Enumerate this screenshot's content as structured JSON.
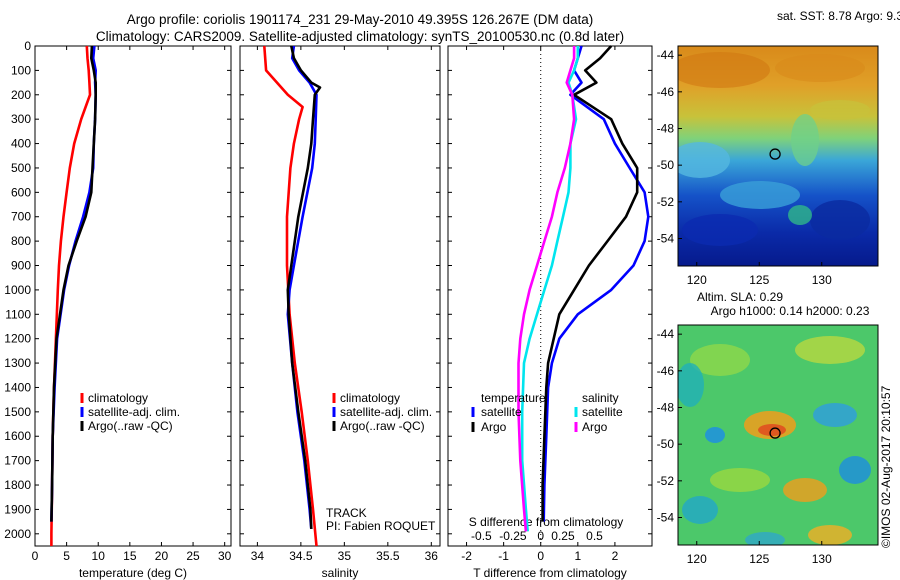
{
  "header": {
    "title_line1": "Argo profile: coriolis 1901174_231 29-May-2010 49.395S 126.267E (DM data)",
    "title_line2": "Climatology: CARS2009. Satellite-adjusted climatology: synTS_20100530.nc (0.8d later)"
  },
  "colors": {
    "climatology": "#ff0000",
    "satellite": "#0000ff",
    "argo": "#000000",
    "salinity_satellite": "#00e5ee",
    "salinity_argo": "#ff00ff"
  },
  "chart_data": [
    {
      "type": "line",
      "id": "temperature",
      "xlabel": "temperature (deg C)",
      "xlim": [
        0,
        31
      ],
      "xticks": [
        0,
        5,
        10,
        15,
        20,
        25,
        30
      ],
      "ylim": [
        2050,
        0
      ],
      "yticks": [
        0,
        100,
        200,
        300,
        400,
        500,
        600,
        700,
        800,
        900,
        1000,
        1100,
        1200,
        1300,
        1400,
        1500,
        1600,
        1700,
        1800,
        1900,
        2000
      ],
      "legend": [
        "climatology",
        "satellite-adj. clim.",
        "Argo(..raw -QC)"
      ],
      "series": [
        {
          "name": "climatology",
          "color": "#ff0000",
          "y": [
            0,
            50,
            100,
            150,
            200,
            250,
            300,
            400,
            500,
            600,
            700,
            800,
            900,
            1000,
            1200,
            1400,
            1600,
            1800,
            2000,
            2050
          ],
          "x": [
            8.2,
            8.3,
            8.5,
            8.6,
            8.7,
            8.0,
            7.3,
            6.2,
            5.5,
            5.0,
            4.5,
            4.1,
            3.8,
            3.6,
            3.3,
            3.0,
            2.8,
            2.7,
            2.6,
            2.6
          ]
        },
        {
          "name": "satellite-adj. clim.",
          "color": "#0000ff",
          "y": [
            0,
            50,
            100,
            150,
            200,
            300,
            400,
            500,
            600,
            700,
            800,
            900,
            1000,
            1200,
            1400,
            1600,
            1800,
            1950
          ],
          "x": [
            9.4,
            9.2,
            9.6,
            9.5,
            9.6,
            9.5,
            9.3,
            9.2,
            8.6,
            7.6,
            6.4,
            5.4,
            4.6,
            3.5,
            3.1,
            2.8,
            2.7,
            2.6
          ]
        },
        {
          "name": "Argo(..raw -QC)",
          "color": "#000000",
          "y": [
            0,
            50,
            100,
            150,
            200,
            300,
            400,
            500,
            600,
            700,
            800,
            900,
            1000,
            1200,
            1400,
            1600,
            1800,
            1950
          ],
          "x": [
            9.0,
            8.9,
            9.3,
            9.6,
            9.6,
            9.5,
            9.3,
            9.1,
            8.9,
            8.0,
            6.6,
            5.3,
            4.5,
            3.4,
            3.0,
            2.8,
            2.7,
            2.6
          ]
        }
      ]
    },
    {
      "type": "line",
      "id": "salinity",
      "xlabel": "salinity",
      "xlim": [
        33.8,
        36.1
      ],
      "xticks": [
        34,
        34.5,
        35,
        35.5,
        36
      ],
      "ylim": [
        2050,
        0
      ],
      "legend": [
        "climatology",
        "satellite-adj. clim.",
        "Argo(..raw -QC)"
      ],
      "annotations": [
        "TRACK",
        "PI: Fabien ROQUET"
      ],
      "series": [
        {
          "name": "climatology",
          "color": "#ff0000",
          "y": [
            0,
            100,
            200,
            250,
            300,
            400,
            500,
            700,
            900,
            1100,
            1300,
            1500,
            1700,
            1900,
            2050
          ],
          "x": [
            34.08,
            34.1,
            34.35,
            34.52,
            34.48,
            34.42,
            34.38,
            34.34,
            34.34,
            34.37,
            34.43,
            34.51,
            34.58,
            34.64,
            34.68
          ]
        },
        {
          "name": "satellite-adj. clim.",
          "color": "#0000ff",
          "y": [
            0,
            50,
            100,
            150,
            200,
            300,
            400,
            500,
            700,
            900,
            1000,
            1100,
            1300,
            1500,
            1700,
            1900,
            1980
          ],
          "x": [
            34.42,
            34.4,
            34.48,
            34.6,
            34.68,
            34.67,
            34.66,
            34.63,
            34.52,
            34.42,
            34.37,
            34.35,
            34.4,
            34.46,
            34.54,
            34.6,
            34.62
          ]
        },
        {
          "name": "Argo(..raw -QC)",
          "color": "#000000",
          "y": [
            0,
            50,
            100,
            150,
            170,
            200,
            300,
            400,
            500,
            700,
            900,
            1000,
            1100,
            1300,
            1500,
            1700,
            1900,
            1980
          ],
          "x": [
            34.39,
            34.42,
            34.5,
            34.62,
            34.72,
            34.66,
            34.64,
            34.62,
            34.58,
            34.47,
            34.39,
            34.35,
            34.36,
            34.4,
            34.47,
            34.55,
            34.61,
            34.62
          ]
        }
      ]
    },
    {
      "type": "line",
      "id": "difference",
      "xlabel": "T difference from climatology",
      "xlim": [
        -2.5,
        3.0
      ],
      "xticks": [
        -2,
        -1,
        0,
        1,
        2
      ],
      "top_axis_label": "S difference from climatology",
      "top_ticks": [
        {
          "label": "-0.5",
          "t_pos": -1.6
        },
        {
          "label": "-0.25",
          "t_pos": -0.75
        },
        {
          "label": "0",
          "t_pos": 0.0
        },
        {
          "label": "0.25",
          "t_pos": 0.6
        },
        {
          "label": "0.5",
          "t_pos": 1.45
        }
      ],
      "legend_headers": [
        "temperature",
        "salinity"
      ],
      "legend_temperature": [
        "satellite",
        "Argo"
      ],
      "legend_salinity": [
        "satellite",
        "Argo"
      ],
      "series": [
        {
          "name": "temperature satellite",
          "color": "#0000ff",
          "y": [
            0,
            50,
            100,
            150,
            200,
            300,
            400,
            500,
            600,
            700,
            800,
            900,
            1000,
            1100,
            1200,
            1300,
            1400,
            1600,
            1800,
            1950
          ],
          "x": [
            1.1,
            1.0,
            0.9,
            1.1,
            0.8,
            1.7,
            2.0,
            2.4,
            2.8,
            2.9,
            2.8,
            2.5,
            1.9,
            1.0,
            0.5,
            0.3,
            0.2,
            0.15,
            0.1,
            0.08
          ]
        },
        {
          "name": "temperature Argo",
          "color": "#000000",
          "y": [
            0,
            50,
            100,
            150,
            200,
            300,
            400,
            500,
            600,
            700,
            800,
            900,
            1000,
            1100,
            1200,
            1300,
            1400,
            1600,
            1800,
            1950
          ],
          "x": [
            1.9,
            1.6,
            1.2,
            1.5,
            0.9,
            1.9,
            2.2,
            2.6,
            2.6,
            2.3,
            1.8,
            1.3,
            0.9,
            0.5,
            0.35,
            0.2,
            0.15,
            0.1,
            0.05,
            0.05
          ]
        },
        {
          "name": "salinity satellite",
          "color": "#00e5ee",
          "y": [
            0,
            50,
            100,
            150,
            200,
            300,
            400,
            500,
            600,
            700,
            800,
            900,
            1000,
            1100,
            1200,
            1300,
            1500,
            1700,
            1900,
            1990
          ],
          "x": [
            1.0,
            1.0,
            0.9,
            0.75,
            0.85,
            0.95,
            0.8,
            0.8,
            0.75,
            0.6,
            0.45,
            0.3,
            0.1,
            -0.1,
            -0.3,
            -0.45,
            -0.5,
            -0.5,
            -0.4,
            -0.35
          ]
        },
        {
          "name": "salinity Argo",
          "color": "#ff00ff",
          "y": [
            0,
            50,
            100,
            150,
            200,
            300,
            400,
            500,
            600,
            700,
            800,
            900,
            1000,
            1100,
            1200,
            1300,
            1500,
            1700,
            1900,
            1990
          ],
          "x": [
            0.9,
            0.9,
            0.8,
            0.7,
            0.85,
            0.9,
            0.8,
            0.65,
            0.45,
            0.3,
            0.1,
            -0.1,
            -0.3,
            -0.45,
            -0.55,
            -0.6,
            -0.6,
            -0.55,
            -0.45,
            -0.4
          ]
        }
      ]
    },
    {
      "type": "heatmap",
      "id": "sst_map",
      "title": "sat. SST: 8.78 Argo: 9.3",
      "xticks": [
        120,
        125,
        130
      ],
      "yticks": [
        -44,
        -46,
        -48,
        -50,
        -52,
        -54
      ],
      "xlim": [
        118.5,
        134.5
      ],
      "ylim": [
        -55.5,
        -43.5
      ],
      "marker": {
        "lon": 126.267,
        "lat": -49.395
      }
    },
    {
      "type": "heatmap",
      "id": "sla_map",
      "title": "Altim. SLA: 0.29",
      "subtitle": "Argo h1000: 0.14 h2000: 0.23",
      "xticks": [
        120,
        125,
        130
      ],
      "yticks": [
        -44,
        -46,
        -48,
        -50,
        -52,
        -54
      ],
      "xlim": [
        118.5,
        134.5
      ],
      "ylim": [
        -55.5,
        -43.5
      ],
      "marker": {
        "lon": 126.267,
        "lat": -49.395
      }
    }
  ],
  "footer": {
    "credit": "©IMOS 02-Aug-2017 20:10:57"
  }
}
